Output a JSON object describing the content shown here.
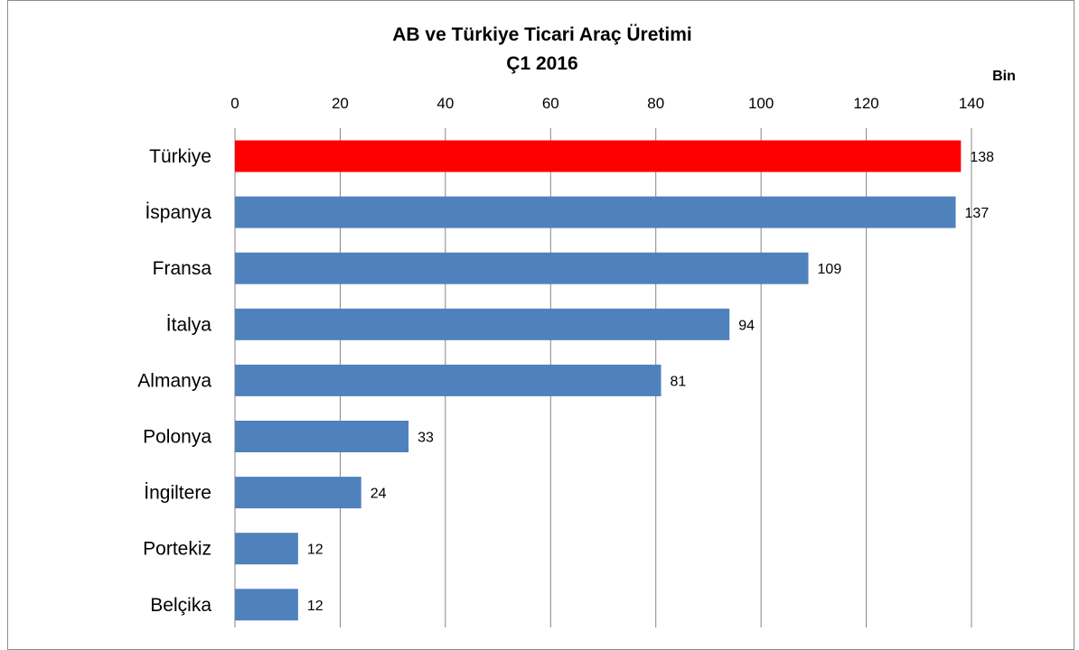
{
  "chart_data": {
    "type": "bar",
    "orientation": "horizontal",
    "title": "AB ve Türkiye Ticari Araç Üretimi",
    "subtitle": "Ç1 2016",
    "unit_label": "Bin",
    "categories": [
      "Türkiye",
      "İspanya",
      "Fransa",
      "İtalya",
      "Almanya",
      "Polonya",
      "İngiltere",
      "Portekiz",
      "Belçika"
    ],
    "values": [
      138,
      137,
      109,
      94,
      81,
      33,
      24,
      12,
      12
    ],
    "data_labels": [
      "138",
      "137",
      "109",
      "94",
      "81",
      "33",
      "24",
      "12",
      "12"
    ],
    "xlim": [
      0,
      140
    ],
    "x_ticks": [
      0,
      20,
      40,
      60,
      80,
      100,
      120,
      140
    ],
    "x_tick_labels": [
      "0",
      "20",
      "40",
      "60",
      "80",
      "100",
      "120",
      "140"
    ],
    "axis_position": "top",
    "grid": true,
    "colors": {
      "default_bar": "#4f81bd",
      "highlight_bar": "#ff0000",
      "gridline": "#868686"
    },
    "highlight_category": "Türkiye"
  }
}
